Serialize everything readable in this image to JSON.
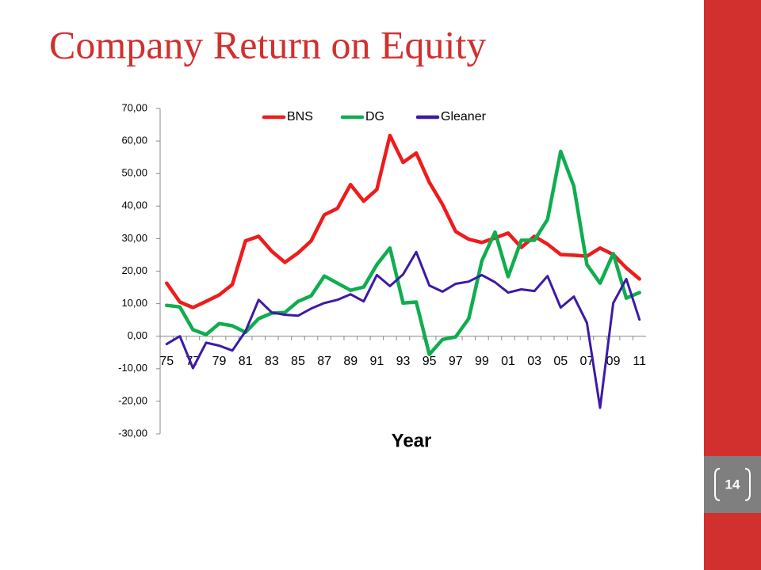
{
  "chart_data": {
    "type": "line",
    "title": "Company Return on Equity",
    "x_label": "Year",
    "categories": [
      "75",
      null,
      "77",
      null,
      "79",
      null,
      "81",
      null,
      "83",
      null,
      "85",
      null,
      "87",
      null,
      "89",
      null,
      "91",
      null,
      "93",
      null,
      "95",
      null,
      "97",
      null,
      "99",
      null,
      "01",
      null,
      "03",
      null,
      "05",
      null,
      "07",
      null,
      "09",
      null,
      "11"
    ],
    "series": [
      {
        "name": "BNS",
        "color": "#ee1c1c",
        "values": [
          16.3,
          10.5,
          8.8,
          10.7,
          12.7,
          15.9,
          29.3,
          30.7,
          26.1,
          22.7,
          25.6,
          29.3,
          37.3,
          39.3,
          46.6,
          41.5,
          45.1,
          61.7,
          53.4,
          56.3,
          47.3,
          40.5,
          32.2,
          29.8,
          28.8,
          30.2,
          31.7,
          27.3,
          30.7,
          28.3,
          25.1,
          24.9,
          24.6,
          27.1,
          25.1,
          21.0,
          17.6
        ]
      },
      {
        "name": "DG",
        "color": "#10ad4f",
        "values": [
          9.5,
          9.0,
          2.0,
          0.5,
          3.9,
          3.2,
          1.2,
          5.4,
          7.1,
          7.3,
          10.7,
          12.4,
          18.5,
          16.3,
          14.1,
          15.1,
          22.0,
          27.1,
          10.2,
          10.5,
          -5.6,
          -1.0,
          -0.2,
          5.4,
          23.2,
          32.0,
          18.3,
          29.5,
          29.5,
          35.9,
          56.8,
          46.1,
          22.0,
          16.3,
          25.4,
          11.7,
          13.4
        ]
      },
      {
        "name": "Gleaner",
        "color": "#3d1aa6",
        "values": [
          -2.4,
          0,
          -9.8,
          -2.0,
          -2.9,
          -4.4,
          1.5,
          11.2,
          7.3,
          6.6,
          6.3,
          8.5,
          10.2,
          11.2,
          12.9,
          10.7,
          18.8,
          15.4,
          19.0,
          25.9,
          15.6,
          13.7,
          16.1,
          16.8,
          18.8,
          16.6,
          13.4,
          14.4,
          13.9,
          18.5,
          8.8,
          12.2,
          4.1,
          -22.0,
          10.2,
          17.6,
          5.1
        ]
      }
    ],
    "ylim": [
      -30,
      70
    ],
    "yticks": [
      {
        "value": -30,
        "label": "-30,00"
      },
      {
        "value": -20,
        "label": "-20,00"
      },
      {
        "value": -10,
        "label": "-10,00"
      },
      {
        "value": 0,
        "label": "0,00"
      },
      {
        "value": 10,
        "label": "10,00"
      },
      {
        "value": 20,
        "label": "20,00"
      },
      {
        "value": 30,
        "label": "30,00"
      },
      {
        "value": 40,
        "label": "40,00"
      },
      {
        "value": 50,
        "label": "50,00"
      },
      {
        "value": 60,
        "label": "60,00"
      },
      {
        "value": 70,
        "label": "70,00"
      }
    ],
    "grid": false,
    "legend": "top"
  },
  "slide": {
    "number": "14"
  }
}
